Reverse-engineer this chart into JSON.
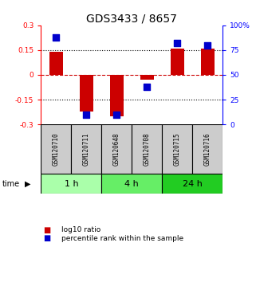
{
  "title": "GDS3433 / 8657",
  "samples": [
    "GSM120710",
    "GSM120711",
    "GSM120648",
    "GSM120708",
    "GSM120715",
    "GSM120716"
  ],
  "log10_ratio": [
    0.14,
    -0.22,
    -0.25,
    -0.03,
    0.16,
    0.16
  ],
  "percentile_rank": [
    88,
    10,
    10,
    38,
    82,
    80
  ],
  "groups": [
    {
      "label": "1 h",
      "samples": [
        0,
        1
      ],
      "color": "#aaffaa"
    },
    {
      "label": "4 h",
      "samples": [
        2,
        3
      ],
      "color": "#66ee66"
    },
    {
      "label": "24 h",
      "samples": [
        4,
        5
      ],
      "color": "#22cc22"
    }
  ],
  "ylim_left": [
    -0.3,
    0.3
  ],
  "ylim_right": [
    0,
    100
  ],
  "yticks_left": [
    -0.3,
    -0.15,
    0,
    0.15,
    0.3
  ],
  "ytick_labels_left": [
    "-0.3",
    "-0.15",
    "0",
    "0.15",
    "0.3"
  ],
  "yticks_right": [
    0,
    25,
    50,
    75,
    100
  ],
  "ytick_labels_right": [
    "0",
    "25",
    "50",
    "75",
    "100%"
  ],
  "bar_color": "#cc0000",
  "dot_color": "#0000cc",
  "hline_color": "#cc0000",
  "grid_color": "#000000",
  "bar_width": 0.45,
  "dot_size": 30,
  "sample_bg_color": "#cccccc",
  "title_fontsize": 10,
  "tick_fontsize": 6.5,
  "legend_fontsize": 6.5,
  "sample_label_fontsize": 5.5,
  "time_label_fontsize": 8,
  "group_label_fontsize": 8
}
